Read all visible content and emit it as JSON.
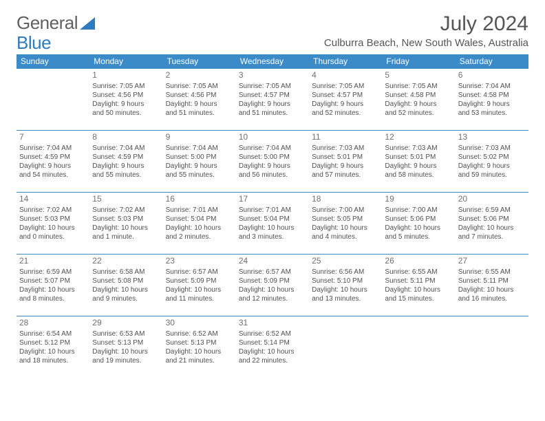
{
  "logo": {
    "text_a": "General",
    "text_b": "Blue"
  },
  "title": "July 2024",
  "subtitle": "Culburra Beach, New South Wales, Australia",
  "day_headers": [
    "Sunday",
    "Monday",
    "Tuesday",
    "Wednesday",
    "Thursday",
    "Friday",
    "Saturday"
  ],
  "colors": {
    "header_bg": "#3b8bc8",
    "header_fg": "#ffffff",
    "border": "#3b8bc8",
    "text": "#505050"
  },
  "weeks": [
    [
      null,
      {
        "n": "1",
        "sr": "Sunrise: 7:05 AM",
        "ss": "Sunset: 4:56 PM",
        "d1": "Daylight: 9 hours",
        "d2": "and 50 minutes."
      },
      {
        "n": "2",
        "sr": "Sunrise: 7:05 AM",
        "ss": "Sunset: 4:56 PM",
        "d1": "Daylight: 9 hours",
        "d2": "and 51 minutes."
      },
      {
        "n": "3",
        "sr": "Sunrise: 7:05 AM",
        "ss": "Sunset: 4:57 PM",
        "d1": "Daylight: 9 hours",
        "d2": "and 51 minutes."
      },
      {
        "n": "4",
        "sr": "Sunrise: 7:05 AM",
        "ss": "Sunset: 4:57 PM",
        "d1": "Daylight: 9 hours",
        "d2": "and 52 minutes."
      },
      {
        "n": "5",
        "sr": "Sunrise: 7:05 AM",
        "ss": "Sunset: 4:58 PM",
        "d1": "Daylight: 9 hours",
        "d2": "and 52 minutes."
      },
      {
        "n": "6",
        "sr": "Sunrise: 7:04 AM",
        "ss": "Sunset: 4:58 PM",
        "d1": "Daylight: 9 hours",
        "d2": "and 53 minutes."
      }
    ],
    [
      {
        "n": "7",
        "sr": "Sunrise: 7:04 AM",
        "ss": "Sunset: 4:59 PM",
        "d1": "Daylight: 9 hours",
        "d2": "and 54 minutes."
      },
      {
        "n": "8",
        "sr": "Sunrise: 7:04 AM",
        "ss": "Sunset: 4:59 PM",
        "d1": "Daylight: 9 hours",
        "d2": "and 55 minutes."
      },
      {
        "n": "9",
        "sr": "Sunrise: 7:04 AM",
        "ss": "Sunset: 5:00 PM",
        "d1": "Daylight: 9 hours",
        "d2": "and 55 minutes."
      },
      {
        "n": "10",
        "sr": "Sunrise: 7:04 AM",
        "ss": "Sunset: 5:00 PM",
        "d1": "Daylight: 9 hours",
        "d2": "and 56 minutes."
      },
      {
        "n": "11",
        "sr": "Sunrise: 7:03 AM",
        "ss": "Sunset: 5:01 PM",
        "d1": "Daylight: 9 hours",
        "d2": "and 57 minutes."
      },
      {
        "n": "12",
        "sr": "Sunrise: 7:03 AM",
        "ss": "Sunset: 5:01 PM",
        "d1": "Daylight: 9 hours",
        "d2": "and 58 minutes."
      },
      {
        "n": "13",
        "sr": "Sunrise: 7:03 AM",
        "ss": "Sunset: 5:02 PM",
        "d1": "Daylight: 9 hours",
        "d2": "and 59 minutes."
      }
    ],
    [
      {
        "n": "14",
        "sr": "Sunrise: 7:02 AM",
        "ss": "Sunset: 5:03 PM",
        "d1": "Daylight: 10 hours",
        "d2": "and 0 minutes."
      },
      {
        "n": "15",
        "sr": "Sunrise: 7:02 AM",
        "ss": "Sunset: 5:03 PM",
        "d1": "Daylight: 10 hours",
        "d2": "and 1 minute."
      },
      {
        "n": "16",
        "sr": "Sunrise: 7:01 AM",
        "ss": "Sunset: 5:04 PM",
        "d1": "Daylight: 10 hours",
        "d2": "and 2 minutes."
      },
      {
        "n": "17",
        "sr": "Sunrise: 7:01 AM",
        "ss": "Sunset: 5:04 PM",
        "d1": "Daylight: 10 hours",
        "d2": "and 3 minutes."
      },
      {
        "n": "18",
        "sr": "Sunrise: 7:00 AM",
        "ss": "Sunset: 5:05 PM",
        "d1": "Daylight: 10 hours",
        "d2": "and 4 minutes."
      },
      {
        "n": "19",
        "sr": "Sunrise: 7:00 AM",
        "ss": "Sunset: 5:06 PM",
        "d1": "Daylight: 10 hours",
        "d2": "and 5 minutes."
      },
      {
        "n": "20",
        "sr": "Sunrise: 6:59 AM",
        "ss": "Sunset: 5:06 PM",
        "d1": "Daylight: 10 hours",
        "d2": "and 7 minutes."
      }
    ],
    [
      {
        "n": "21",
        "sr": "Sunrise: 6:59 AM",
        "ss": "Sunset: 5:07 PM",
        "d1": "Daylight: 10 hours",
        "d2": "and 8 minutes."
      },
      {
        "n": "22",
        "sr": "Sunrise: 6:58 AM",
        "ss": "Sunset: 5:08 PM",
        "d1": "Daylight: 10 hours",
        "d2": "and 9 minutes."
      },
      {
        "n": "23",
        "sr": "Sunrise: 6:57 AM",
        "ss": "Sunset: 5:09 PM",
        "d1": "Daylight: 10 hours",
        "d2": "and 11 minutes."
      },
      {
        "n": "24",
        "sr": "Sunrise: 6:57 AM",
        "ss": "Sunset: 5:09 PM",
        "d1": "Daylight: 10 hours",
        "d2": "and 12 minutes."
      },
      {
        "n": "25",
        "sr": "Sunrise: 6:56 AM",
        "ss": "Sunset: 5:10 PM",
        "d1": "Daylight: 10 hours",
        "d2": "and 13 minutes."
      },
      {
        "n": "26",
        "sr": "Sunrise: 6:55 AM",
        "ss": "Sunset: 5:11 PM",
        "d1": "Daylight: 10 hours",
        "d2": "and 15 minutes."
      },
      {
        "n": "27",
        "sr": "Sunrise: 6:55 AM",
        "ss": "Sunset: 5:11 PM",
        "d1": "Daylight: 10 hours",
        "d2": "and 16 minutes."
      }
    ],
    [
      {
        "n": "28",
        "sr": "Sunrise: 6:54 AM",
        "ss": "Sunset: 5:12 PM",
        "d1": "Daylight: 10 hours",
        "d2": "and 18 minutes."
      },
      {
        "n": "29",
        "sr": "Sunrise: 6:53 AM",
        "ss": "Sunset: 5:13 PM",
        "d1": "Daylight: 10 hours",
        "d2": "and 19 minutes."
      },
      {
        "n": "30",
        "sr": "Sunrise: 6:52 AM",
        "ss": "Sunset: 5:13 PM",
        "d1": "Daylight: 10 hours",
        "d2": "and 21 minutes."
      },
      {
        "n": "31",
        "sr": "Sunrise: 6:52 AM",
        "ss": "Sunset: 5:14 PM",
        "d1": "Daylight: 10 hours",
        "d2": "and 22 minutes."
      },
      null,
      null,
      null
    ]
  ]
}
